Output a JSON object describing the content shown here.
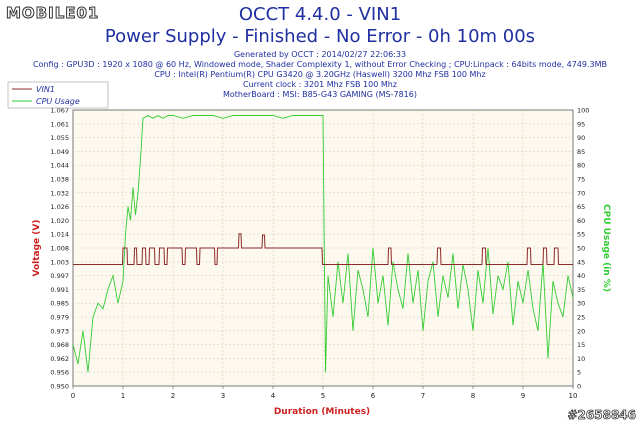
{
  "header": {
    "logo": "MOBILE01",
    "title": "OCCT 4.4.0 - VIN1",
    "subtitle": "Power Supply - Finished - No Error - 0h 10m 00s",
    "info_lines": [
      "Generated by OCCT : 2014/02/27 22:06:33",
      "Config : GPU3D : 1920 x 1080 @ 60 Hz, Windowed mode, Shader Complexity 1, without Error Checking ; CPU:Linpack : 64bits mode, 4749.3MB",
      "CPU : Intel(R) Pentium(R) CPU G3420 @ 3.20GHz (Haswell) 3200 Mhz FSB 100 Mhz",
      "Current clock : 3201 Mhz FSB 100 Mhz",
      "MotherBoard : MSI: B85-G43 GAMING (MS-7816)"
    ]
  },
  "watermark": "#2658846",
  "colors": {
    "vin1": "#8b2a2a",
    "cpu": "#33cc33",
    "grid": "#d9cfb8",
    "plot_bg": "#fdf9ee",
    "text": "#1f2fa0",
    "axis_title": "#cc2222"
  },
  "chart_data": {
    "type": "line",
    "xlabel": "Duration (Minutes)",
    "ylabel": "Voltage (V)",
    "y2label": "CPU Usage (in %)",
    "xlim": [
      0,
      10
    ],
    "ylim": [
      0.95,
      1.067
    ],
    "y2lim": [
      0,
      100
    ],
    "x_ticks": [
      "0",
      "1",
      "2",
      "3",
      "4",
      "5",
      "6",
      "7",
      "8",
      "9",
      "10"
    ],
    "y_ticks": [
      "0.950",
      "0.956",
      "0.962",
      "0.968",
      "0.973",
      "0.979",
      "0.985",
      "0.991",
      "0.997",
      "1.003",
      "1.008",
      "1.014",
      "1.020",
      "1.026",
      "1.032",
      "1.038",
      "1.044",
      "1.049",
      "1.055",
      "1.061",
      "1.067"
    ],
    "y2_ticks": [
      "0",
      "5",
      "10",
      "15",
      "20",
      "25",
      "30",
      "35",
      "40",
      "45",
      "50",
      "55",
      "60",
      "65",
      "70",
      "75",
      "80",
      "85",
      "90",
      "95",
      "100"
    ],
    "grid": true,
    "legend_position": "top-left",
    "series": [
      {
        "name": "VIN1",
        "axis": "left",
        "x": [
          0,
          0.99,
          1.0,
          1.08,
          1.09,
          1.22,
          1.23,
          1.27,
          1.28,
          1.38,
          1.39,
          1.45,
          1.46,
          1.52,
          1.53,
          1.63,
          1.64,
          1.72,
          1.73,
          1.82,
          1.83,
          1.88,
          1.89,
          2.18,
          2.19,
          2.24,
          2.25,
          2.47,
          2.48,
          2.53,
          2.54,
          2.83,
          2.84,
          2.88,
          2.89,
          3.31,
          3.32,
          3.36,
          3.37,
          3.78,
          3.79,
          3.83,
          3.84,
          4.98,
          4.99,
          6.3,
          6.31,
          6.36,
          6.37,
          7.28,
          7.29,
          7.35,
          7.36,
          8.18,
          8.19,
          8.25,
          8.26,
          9.08,
          9.09,
          9.15,
          9.16,
          9.4,
          9.41,
          9.47,
          9.48,
          9.62,
          9.63,
          9.7,
          9.71,
          10
        ],
        "y": [
          1.0015,
          1.0015,
          1.0085,
          1.0085,
          1.0015,
          1.0015,
          1.0085,
          1.0085,
          1.0015,
          1.0015,
          1.0085,
          1.0085,
          1.0015,
          1.0015,
          1.0085,
          1.0085,
          1.0015,
          1.0015,
          1.0085,
          1.0085,
          1.0015,
          1.0015,
          1.0085,
          1.0085,
          1.0015,
          1.0015,
          1.0085,
          1.0085,
          1.0015,
          1.0015,
          1.0085,
          1.0085,
          1.0015,
          1.0015,
          1.0085,
          1.0085,
          1.0145,
          1.0145,
          1.0085,
          1.0085,
          1.014,
          1.014,
          1.0085,
          1.0085,
          1.0015,
          1.0015,
          1.0085,
          1.0085,
          1.0015,
          1.0015,
          1.0085,
          1.0085,
          1.0015,
          1.0015,
          1.0085,
          1.0085,
          1.0015,
          1.0015,
          1.0085,
          1.0085,
          1.0015,
          1.0015,
          1.0085,
          1.0085,
          1.0015,
          1.0015,
          1.0085,
          1.0085,
          1.0015,
          1.0015
        ]
      },
      {
        "name": "CPU Usage",
        "axis": "right",
        "x": [
          0,
          0.1,
          0.2,
          0.3,
          0.4,
          0.5,
          0.6,
          0.7,
          0.8,
          0.9,
          1.0,
          1.05,
          1.1,
          1.15,
          1.2,
          1.25,
          1.3,
          1.35,
          1.4,
          1.5,
          1.6,
          1.7,
          1.8,
          1.9,
          2.0,
          2.2,
          2.4,
          2.6,
          2.8,
          3.0,
          3.2,
          3.4,
          3.6,
          3.8,
          4.0,
          4.2,
          4.4,
          4.6,
          4.8,
          4.95,
          5.0,
          5.05,
          5.1,
          5.2,
          5.3,
          5.4,
          5.5,
          5.6,
          5.7,
          5.8,
          5.9,
          6.0,
          6.1,
          6.2,
          6.3,
          6.4,
          6.5,
          6.6,
          6.7,
          6.8,
          6.9,
          7.0,
          7.1,
          7.2,
          7.3,
          7.4,
          7.5,
          7.6,
          7.7,
          7.8,
          7.9,
          8.0,
          8.1,
          8.2,
          8.3,
          8.4,
          8.5,
          8.6,
          8.7,
          8.8,
          8.9,
          9.0,
          9.1,
          9.2,
          9.3,
          9.4,
          9.5,
          9.6,
          9.7,
          9.8,
          9.9,
          10.0
        ],
        "y": [
          15,
          8,
          20,
          5,
          25,
          30,
          28,
          35,
          40,
          30,
          38,
          55,
          65,
          60,
          72,
          62,
          70,
          82,
          97,
          98,
          97,
          98,
          97,
          98,
          98,
          97,
          98,
          98,
          98,
          97,
          98,
          98,
          98,
          98,
          98,
          97,
          98,
          98,
          98,
          98,
          98,
          5,
          40,
          25,
          45,
          30,
          48,
          20,
          42,
          35,
          25,
          50,
          30,
          40,
          22,
          45,
          35,
          28,
          48,
          30,
          42,
          20,
          38,
          45,
          25,
          40,
          32,
          48,
          28,
          44,
          35,
          20,
          42,
          30,
          50,
          26,
          40,
          35,
          45,
          22,
          38,
          30,
          42,
          28,
          20,
          45,
          10,
          38,
          30,
          25,
          40,
          32
        ]
      }
    ]
  }
}
